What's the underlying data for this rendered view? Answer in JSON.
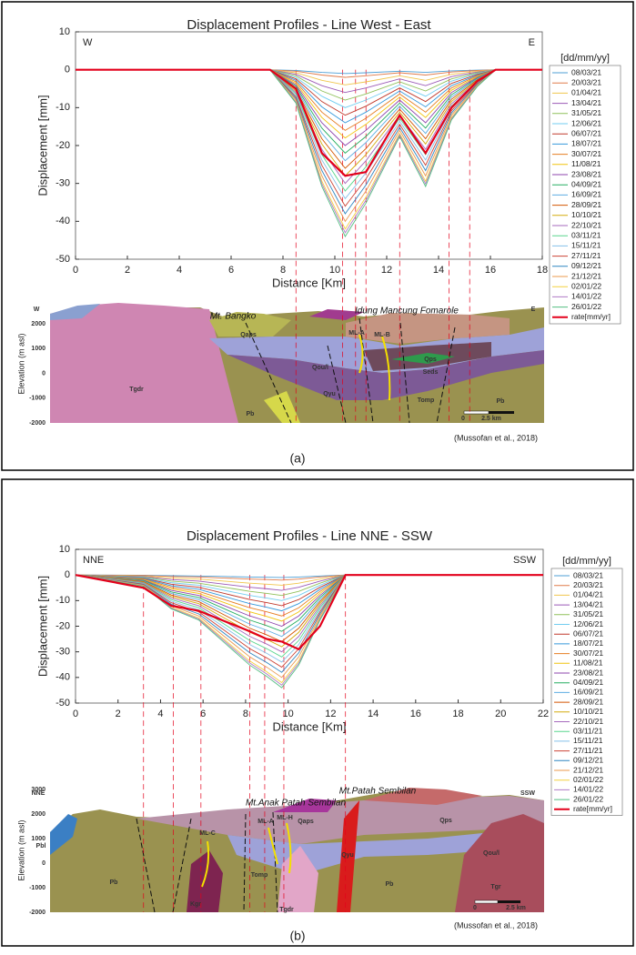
{
  "chart_data": [
    {
      "type": "line",
      "title": "Displacement Profiles - Line West - East",
      "xlabel": "Distance [Km]",
      "ylabel": "Displacement [mm]",
      "left_label": "W",
      "right_label": "E",
      "legend_title": "[dd/mm/yy]",
      "xlim": [
        0,
        18
      ],
      "ylim": [
        -50,
        10
      ],
      "xticks": [
        0,
        2,
        4,
        6,
        8,
        10,
        12,
        14,
        16,
        18
      ],
      "yticks": [
        -50,
        -40,
        -30,
        -20,
        -10,
        0,
        10
      ],
      "vlines": [
        8.5,
        10.3,
        10.8,
        11.2,
        12.5,
        14.4,
        15.2
      ],
      "x": [
        0,
        7.5,
        8.5,
        9.5,
        10.4,
        11.2,
        12.5,
        13.5,
        14.5,
        15.5,
        16.2,
        18
      ],
      "series": [
        {
          "name": "08/03/21",
          "color": "#4d9fd6",
          "values": [
            0,
            0,
            -0.2,
            -0.7,
            -1,
            -0.8,
            -0.4,
            -0.7,
            -0.3,
            -0.1,
            0,
            0
          ]
        },
        {
          "name": "20/03/21",
          "color": "#e07b4a",
          "values": [
            0,
            0,
            -0.4,
            -1.4,
            -2,
            -1.6,
            -0.8,
            -1.4,
            -0.6,
            -0.2,
            0,
            0
          ]
        },
        {
          "name": "01/04/21",
          "color": "#f0c64d",
          "values": [
            0,
            0,
            -0.8,
            -2.8,
            -4,
            -3.2,
            -1.6,
            -2.8,
            -1.2,
            -0.4,
            0,
            0
          ]
        },
        {
          "name": "13/04/21",
          "color": "#9b59b6",
          "values": [
            0,
            0,
            -1.2,
            -4.2,
            -6,
            -4.8,
            -2.4,
            -4.2,
            -1.8,
            -0.6,
            0,
            0
          ]
        },
        {
          "name": "31/05/21",
          "color": "#8fc15a",
          "values": [
            0,
            0,
            -1.6,
            -5.6,
            -8,
            -6.4,
            -3.2,
            -5.6,
            -2.4,
            -0.8,
            0,
            0
          ]
        },
        {
          "name": "12/06/21",
          "color": "#71cdf0",
          "values": [
            0,
            0,
            -2,
            -7,
            -10,
            -8,
            -4,
            -7,
            -3,
            -1,
            0,
            0
          ]
        },
        {
          "name": "06/07/21",
          "color": "#c0392b",
          "values": [
            0,
            0,
            -2.4,
            -8.4,
            -12,
            -9.6,
            -4.8,
            -8.4,
            -3.6,
            -1.2,
            0,
            0
          ]
        },
        {
          "name": "18/07/21",
          "color": "#3498db",
          "values": [
            0,
            0,
            -2.8,
            -9.8,
            -14,
            -11.2,
            -5.6,
            -9.8,
            -4.2,
            -1.4,
            0,
            0
          ]
        },
        {
          "name": "30/07/21",
          "color": "#e67e22",
          "values": [
            0,
            0,
            -3.2,
            -11.2,
            -16,
            -12.8,
            -6.4,
            -11.2,
            -4.8,
            -1.6,
            0,
            0
          ]
        },
        {
          "name": "11/08/21",
          "color": "#f1c40f",
          "values": [
            0,
            0,
            -3.6,
            -12.6,
            -18,
            -14.4,
            -7.2,
            -12.6,
            -5.4,
            -1.8,
            0,
            0
          ]
        },
        {
          "name": "23/08/21",
          "color": "#8e44ad",
          "values": [
            0,
            0,
            -4,
            -14,
            -20,
            -16,
            -8,
            -14,
            -6,
            -2,
            0,
            0
          ]
        },
        {
          "name": "04/09/21",
          "color": "#27ae60",
          "values": [
            0,
            0,
            -4.4,
            -15.4,
            -22,
            -17.6,
            -8.8,
            -15.4,
            -6.6,
            -2.2,
            0,
            0
          ]
        },
        {
          "name": "16/09/21",
          "color": "#5dade2",
          "values": [
            0,
            0,
            -4.8,
            -16.8,
            -24,
            -19.2,
            -9.6,
            -16.8,
            -7.2,
            -2.4,
            0,
            0
          ]
        },
        {
          "name": "28/09/21",
          "color": "#d35400",
          "values": [
            0,
            0,
            -5.2,
            -18.2,
            -26,
            -20.8,
            -10.4,
            -18.2,
            -7.8,
            -2.6,
            0,
            0
          ]
        },
        {
          "name": "10/10/21",
          "color": "#d4ac0d",
          "values": [
            0,
            0,
            -5.6,
            -19.6,
            -28,
            -22.4,
            -11.2,
            -19.6,
            -8.4,
            -2.8,
            0,
            0
          ]
        },
        {
          "name": "22/10/21",
          "color": "#a569bd",
          "values": [
            0,
            0,
            -6,
            -21,
            -30,
            -24,
            -12,
            -21,
            -9,
            -3,
            0,
            0
          ]
        },
        {
          "name": "03/11/21",
          "color": "#58d68d",
          "values": [
            0,
            0,
            -6.4,
            -22.4,
            -32,
            -25.6,
            -12.8,
            -22.4,
            -9.6,
            -3.2,
            0,
            0
          ]
        },
        {
          "name": "15/11/21",
          "color": "#85c1e9",
          "values": [
            0,
            0,
            -6.8,
            -23.8,
            -34,
            -27.2,
            -13.6,
            -23.8,
            -10.2,
            -3.4,
            0,
            0
          ]
        },
        {
          "name": "27/11/21",
          "color": "#cb4335",
          "values": [
            0,
            0,
            -7.2,
            -25.2,
            -36,
            -28.8,
            -14.4,
            -25.2,
            -10.8,
            -3.6,
            0,
            0
          ]
        },
        {
          "name": "09/12/21",
          "color": "#2e86c1",
          "values": [
            0,
            0,
            -7.6,
            -26.6,
            -38,
            -30.4,
            -15.2,
            -26.6,
            -11.4,
            -3.8,
            0,
            0
          ]
        },
        {
          "name": "21/12/21",
          "color": "#eb984e",
          "values": [
            0,
            0,
            -8,
            -28,
            -40,
            -32,
            -16,
            -28,
            -12,
            -4,
            0,
            0
          ]
        },
        {
          "name": "02/01/22",
          "color": "#f4d03f",
          "values": [
            0,
            0,
            -8.4,
            -29.4,
            -42,
            -33.6,
            -16.8,
            -29.4,
            -12.6,
            -4.2,
            0,
            0
          ]
        },
        {
          "name": "14/01/22",
          "color": "#af7ac5",
          "values": [
            0,
            0,
            -8.6,
            -30.1,
            -43,
            -34.4,
            -17.2,
            -30.1,
            -12.9,
            -4.3,
            0,
            0
          ]
        },
        {
          "name": "26/01/22",
          "color": "#52be80",
          "values": [
            0,
            0,
            -8.8,
            -30.8,
            -44,
            -35.2,
            -17.6,
            -30.8,
            -13.2,
            -4.4,
            0,
            0
          ]
        },
        {
          "name": "rate[mm/yr]",
          "color": "#e3001b",
          "values": [
            0,
            0,
            -5,
            -22,
            -28,
            -27,
            -12,
            -22,
            -10,
            -3,
            0,
            0
          ]
        }
      ]
    },
    {
      "type": "line",
      "title": "Displacement Profiles - Line NNE - SSW",
      "xlabel": "Distance [Km]",
      "ylabel": "Displacement [mm]",
      "left_label": "NNE",
      "right_label": "SSW",
      "legend_title": "[dd/mm/yy]",
      "xlim": [
        0,
        22
      ],
      "ylim": [
        -50,
        10
      ],
      "xticks": [
        0,
        2,
        4,
        6,
        8,
        10,
        12,
        14,
        16,
        18,
        20,
        22
      ],
      "yticks": [
        -50,
        -40,
        -30,
        -20,
        -10,
        0,
        10
      ],
      "vlines": [
        3.2,
        4.6,
        5.9,
        8.2,
        8.9,
        9.8,
        12.7
      ],
      "x": [
        0,
        3.2,
        4.5,
        5.8,
        7,
        8.2,
        9,
        9.7,
        10.5,
        11.5,
        12.7,
        22
      ],
      "series": [
        {
          "name": "08/03/21",
          "color": "#4d9fd6",
          "values": [
            0,
            -0.1,
            -0.3,
            -0.4,
            -0.6,
            -0.8,
            -0.9,
            -1,
            -0.8,
            -0.4,
            0,
            0
          ]
        },
        {
          "name": "20/03/21",
          "color": "#e07b4a",
          "values": [
            0,
            -0.2,
            -0.6,
            -0.8,
            -1.2,
            -1.6,
            -1.8,
            -2,
            -1.6,
            -0.8,
            0,
            0
          ]
        },
        {
          "name": "01/04/21",
          "color": "#f0c64d",
          "values": [
            0,
            -0.4,
            -1.2,
            -1.6,
            -2.4,
            -3.2,
            -3.6,
            -4,
            -3.2,
            -1.6,
            0,
            0
          ]
        },
        {
          "name": "13/04/21",
          "color": "#9b59b6",
          "values": [
            0,
            -0.6,
            -1.8,
            -2.4,
            -3.6,
            -4.8,
            -5.4,
            -6,
            -4.8,
            -2.4,
            0,
            0
          ]
        },
        {
          "name": "31/05/21",
          "color": "#8fc15a",
          "values": [
            0,
            -0.8,
            -2.4,
            -3.2,
            -4.8,
            -6.4,
            -7.2,
            -8,
            -6.4,
            -3.2,
            0,
            0
          ]
        },
        {
          "name": "12/06/21",
          "color": "#71cdf0",
          "values": [
            0,
            -1,
            -3,
            -4,
            -6,
            -8,
            -9,
            -10,
            -8,
            -4,
            0,
            0
          ]
        },
        {
          "name": "06/07/21",
          "color": "#c0392b",
          "values": [
            0,
            -1.2,
            -3.6,
            -4.8,
            -7.2,
            -9.6,
            -10.8,
            -12,
            -9.6,
            -4.8,
            0,
            0
          ]
        },
        {
          "name": "18/07/21",
          "color": "#3498db",
          "values": [
            0,
            -1.4,
            -4.2,
            -5.6,
            -8.4,
            -11.2,
            -12.6,
            -14,
            -11.2,
            -5.6,
            0,
            0
          ]
        },
        {
          "name": "30/07/21",
          "color": "#e67e22",
          "values": [
            0,
            -1.6,
            -4.8,
            -6.4,
            -9.6,
            -12.8,
            -14.4,
            -16,
            -12.8,
            -6.4,
            0,
            0
          ]
        },
        {
          "name": "11/08/21",
          "color": "#f1c40f",
          "values": [
            0,
            -1.8,
            -5.4,
            -7.2,
            -10.8,
            -14.4,
            -16.2,
            -18,
            -14.4,
            -7.2,
            0,
            0
          ]
        },
        {
          "name": "23/08/21",
          "color": "#8e44ad",
          "values": [
            0,
            -2,
            -6,
            -8,
            -12,
            -16,
            -18,
            -20,
            -16,
            -8,
            0,
            0
          ]
        },
        {
          "name": "04/09/21",
          "color": "#27ae60",
          "values": [
            0,
            -2.2,
            -6.6,
            -8.8,
            -13.2,
            -17.6,
            -19.8,
            -22,
            -17.6,
            -8.8,
            0,
            0
          ]
        },
        {
          "name": "16/09/21",
          "color": "#5dade2",
          "values": [
            0,
            -2.4,
            -7.2,
            -9.6,
            -14.4,
            -19.2,
            -21.6,
            -24,
            -19.2,
            -9.6,
            0,
            0
          ]
        },
        {
          "name": "28/09/21",
          "color": "#d35400",
          "values": [
            0,
            -2.6,
            -7.8,
            -10.4,
            -15.6,
            -20.8,
            -23.4,
            -26,
            -20.8,
            -10.4,
            0,
            0
          ]
        },
        {
          "name": "10/10/21",
          "color": "#d4ac0d",
          "values": [
            0,
            -2.8,
            -8.4,
            -11.2,
            -16.8,
            -22.4,
            -25.2,
            -28,
            -22.4,
            -11.2,
            0,
            0
          ]
        },
        {
          "name": "22/10/21",
          "color": "#a569bd",
          "values": [
            0,
            -3,
            -9,
            -12,
            -18,
            -24,
            -27,
            -30,
            -24,
            -12,
            0,
            0
          ]
        },
        {
          "name": "03/11/21",
          "color": "#58d68d",
          "values": [
            0,
            -3.2,
            -9.6,
            -12.8,
            -19.2,
            -25.6,
            -28.8,
            -32,
            -25.6,
            -12.8,
            0,
            0
          ]
        },
        {
          "name": "15/11/21",
          "color": "#85c1e9",
          "values": [
            0,
            -3.4,
            -10.2,
            -13.6,
            -20.4,
            -27.2,
            -30.6,
            -34,
            -27.2,
            -13.6,
            0,
            0
          ]
        },
        {
          "name": "27/11/21",
          "color": "#cb4335",
          "values": [
            0,
            -3.6,
            -10.8,
            -14.4,
            -21.6,
            -28.8,
            -32.4,
            -36,
            -28.8,
            -14.4,
            0,
            0
          ]
        },
        {
          "name": "09/12/21",
          "color": "#2e86c1",
          "values": [
            0,
            -3.8,
            -11.4,
            -15.2,
            -22.8,
            -30.4,
            -34.2,
            -38,
            -30.4,
            -15.2,
            0,
            0
          ]
        },
        {
          "name": "21/12/21",
          "color": "#eb984e",
          "values": [
            0,
            -4,
            -12,
            -16,
            -24,
            -32,
            -36,
            -40,
            -32,
            -16,
            0,
            0
          ]
        },
        {
          "name": "02/01/22",
          "color": "#f4d03f",
          "values": [
            0,
            -4.2,
            -12.6,
            -16.8,
            -25.2,
            -33.6,
            -37.8,
            -42,
            -33.6,
            -16.8,
            0,
            0
          ]
        },
        {
          "name": "14/01/22",
          "color": "#af7ac5",
          "values": [
            0,
            -4.3,
            -12.9,
            -17.2,
            -25.8,
            -34.4,
            -38.7,
            -43,
            -34.4,
            -17.2,
            0,
            0
          ]
        },
        {
          "name": "26/01/22",
          "color": "#52be80",
          "values": [
            0,
            -4.4,
            -13.2,
            -17.6,
            -26.4,
            -35.2,
            -39.6,
            -44,
            -35.2,
            -17.6,
            0,
            0
          ]
        },
        {
          "name": "rate[mm/yr]",
          "color": "#e3001b",
          "values": [
            0,
            -5,
            -12,
            -14,
            -18,
            -22,
            -25,
            -26,
            -29,
            -20,
            0,
            0
          ]
        }
      ]
    }
  ],
  "sections": [
    {
      "ylabel": "Elevation (m asl)",
      "ticks": [
        2000,
        1000,
        0,
        -1000,
        -2000
      ],
      "labels": [
        "W",
        "E",
        "Mt. Bangko",
        "Idung Mancung Fomarole",
        "ML-A",
        "ML-B",
        "Qaps",
        "Qou/l",
        "Qps",
        "Seds",
        "Qyu",
        "Tomp",
        "Pb",
        "Tgdr",
        "Pb",
        "0",
        "2.5 km"
      ],
      "source": "(Mussofan et al., 2018)",
      "caption": "(a)"
    },
    {
      "ylabel": "Elevation (m asl)",
      "ticks": [
        3000,
        2000,
        1000,
        0,
        -1000,
        -2000
      ],
      "labels": [
        "NNE",
        "SSW",
        "Mt.Patah Sembilan",
        "Mt.Anak Patah Sembilan",
        "ML-C",
        "ML-A",
        "ML-H",
        "Qaps",
        "Qps",
        "Qou/l",
        "Pbl",
        "Pb",
        "Tomp",
        "Kgr",
        "Tgdr",
        "Qyu",
        "Pb",
        "Tgr",
        "0",
        "2.5 km"
      ],
      "source": "(Mussofan et al., 2018)",
      "caption": "(b)"
    }
  ]
}
